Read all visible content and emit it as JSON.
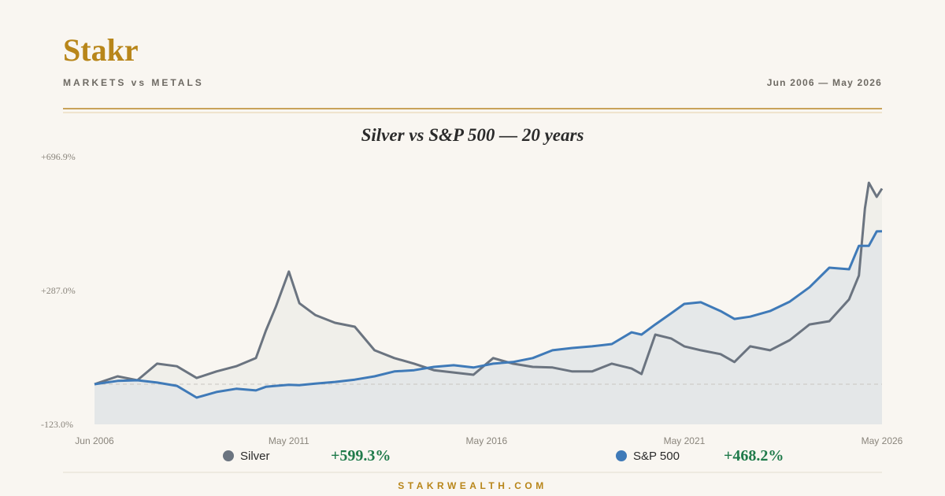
{
  "header": {
    "brand": "Stakr",
    "subtitle": "MARKETS vs METALS",
    "range": "Jun 2006 — May 2026"
  },
  "footer": "STAKRWEALTH.COM",
  "chart_data": {
    "type": "line",
    "title": "Silver vs S&P 500 — 20 years",
    "x": [
      2006.417,
      2007,
      2007.5,
      2008,
      2008.5,
      2009,
      2009.5,
      2010,
      2010.5,
      2010.75,
      2011,
      2011.333,
      2011.6,
      2012,
      2012.5,
      2013,
      2013.5,
      2014,
      2014.5,
      2015,
      2015.5,
      2016,
      2016.5,
      2017,
      2017.5,
      2018,
      2018.5,
      2019,
      2019.5,
      2020,
      2020.25,
      2020.6,
      2021,
      2021.333,
      2021.75,
      2022.25,
      2022.6,
      2023,
      2023.5,
      2024,
      2024.5,
      2025,
      2025.5,
      2025.75,
      2025.9,
      2026,
      2026.2,
      2026.333
    ],
    "series": [
      {
        "name": "Silver",
        "color": "#6b7480",
        "area_color": "#eeede9",
        "total_label": "+599.3%",
        "values": [
          0,
          24,
          12,
          63,
          55,
          19,
          39,
          55,
          80,
          164,
          236,
          345,
          248,
          212,
          188,
          176,
          104,
          80,
          63,
          43,
          36,
          29,
          80,
          63,
          53,
          51,
          39,
          39,
          63,
          48,
          31,
          152,
          140,
          116,
          104,
          92,
          68,
          116,
          104,
          135,
          183,
          193,
          260,
          333,
          538,
          617,
          574,
          599.3
        ]
      },
      {
        "name": "S&P 500",
        "color": "#3f7ab8",
        "area_color": "#e2e5e8",
        "total_label": "+468.2%",
        "values": [
          0,
          10,
          12,
          5,
          -5,
          -41,
          -24,
          -14,
          -19,
          -8,
          -5,
          -2,
          -3,
          2,
          7,
          14,
          24,
          39,
          43,
          53,
          58,
          51,
          63,
          68,
          80,
          104,
          111,
          116,
          123,
          159,
          152,
          183,
          217,
          246,
          251,
          224,
          200,
          207,
          224,
          253,
          297,
          357,
          352,
          424,
          424,
          424,
          468,
          468.2
        ]
      }
    ],
    "xlim": [
      2006.417,
      2026.333
    ],
    "xticks": [
      {
        "value": 2006.417,
        "label": "Jun 2006"
      },
      {
        "value": 2011.333,
        "label": "May 2011"
      },
      {
        "value": 2016.333,
        "label": "May 2016"
      },
      {
        "value": 2021.333,
        "label": "May 2021"
      },
      {
        "value": 2026.333,
        "label": "May 2026"
      }
    ],
    "ylim": [
      -123,
      696.9
    ],
    "yticks": [
      {
        "value": -123,
        "label": "-123.0%"
      },
      {
        "value": 287,
        "label": "+287.0%"
      },
      {
        "value": 696.9,
        "label": "+696.9%"
      }
    ],
    "reference_line": 0,
    "total_color": "#1f7a4a"
  }
}
